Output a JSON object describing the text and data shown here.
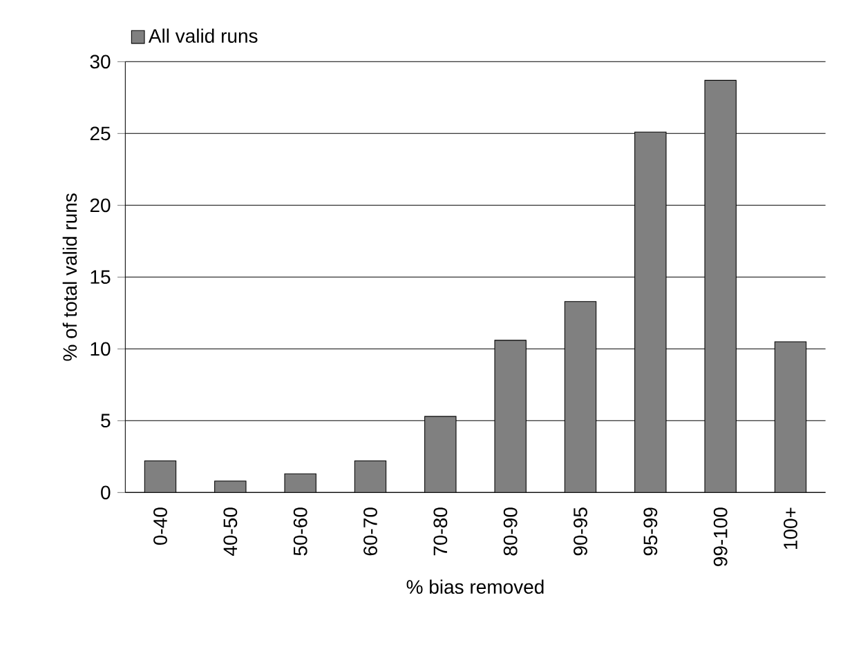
{
  "chart_data": {
    "type": "bar",
    "xlabel": "% bias removed",
    "ylabel": "% of total valid runs",
    "categories": [
      "0-40",
      "40-50",
      "50-60",
      "60-70",
      "70-80",
      "80-90",
      "90-95",
      "95-99",
      "99-100",
      "100+"
    ],
    "series": [
      {
        "name": "All valid runs",
        "color": "#808080",
        "values": [
          2.2,
          0.8,
          1.3,
          2.2,
          5.3,
          10.6,
          13.3,
          25.1,
          28.7,
          10.5
        ]
      }
    ],
    "ylim": [
      0,
      30
    ],
    "yticks": [
      0,
      5,
      10,
      15,
      20,
      25,
      30
    ],
    "grid": "y",
    "legend": "top left"
  }
}
